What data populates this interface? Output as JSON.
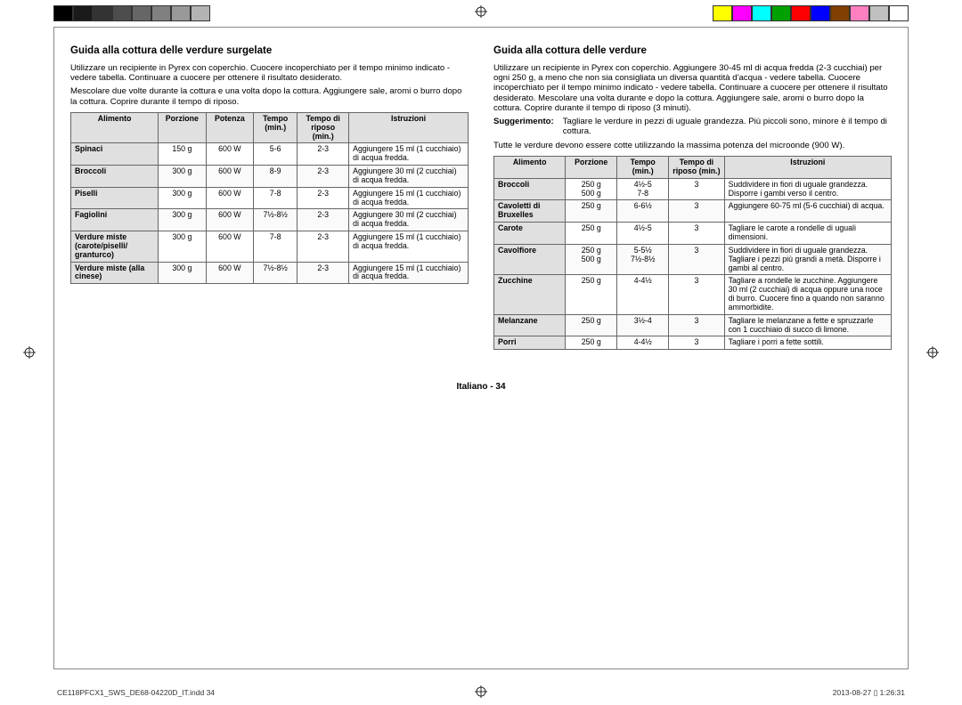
{
  "colorbar_left": [
    "#000000",
    "#1a1a1a",
    "#333333",
    "#4d4d4d",
    "#666666",
    "#808080",
    "#999999",
    "#b3b3b3"
  ],
  "colorbar_right": [
    "#ffff00",
    "#ff00ff",
    "#00ffff",
    "#00a000",
    "#ff0000",
    "#0000ff",
    "#804000",
    "#ff80c0",
    "#c0c0c0",
    "#ffffff"
  ],
  "header_bg": "#e0e0e0",
  "row_alt_bg": "#f0f0f0",
  "left": {
    "title": "Guida alla cottura delle verdure surgelate",
    "p1": "Utilizzare un recipiente in Pyrex con coperchio. Cuocere incoperchiato per il tempo minimo indicato - vedere tabella. Continuare a cuocere per ottenere il risultato desiderato.",
    "p2": "Mescolare due volte durante la cottura e una volta dopo la cottura. Aggiungere sale, aromi o burro dopo la cottura. Coprire durante il tempo di riposo.",
    "cols": [
      "Alimento",
      "Porzione",
      "Potenza",
      "Tempo (min.)",
      "Tempo di riposo (min.)",
      "Istruzioni"
    ],
    "rows": [
      [
        "Spinaci",
        "150 g",
        "600 W",
        "5-6",
        "2-3",
        "Aggiungere 15 ml (1 cucchiaio) di acqua fredda."
      ],
      [
        "Broccoli",
        "300 g",
        "600 W",
        "8-9",
        "2-3",
        "Aggiungere 30 ml (2 cucchiai) di acqua fredda."
      ],
      [
        "Piselli",
        "300 g",
        "600 W",
        "7-8",
        "2-3",
        "Aggiungere 15 ml (1 cucchiaio) di acqua fredda."
      ],
      [
        "Fagiolini",
        "300 g",
        "600 W",
        "7½-8½",
        "2-3",
        "Aggiungere 30 ml (2 cucchiai) di acqua fredda."
      ],
      [
        "Verdure miste (carote/piselli/ granturco)",
        "300 g",
        "600 W",
        "7-8",
        "2-3",
        "Aggiungere 15 ml (1 cucchiaio) di acqua fredda."
      ],
      [
        "Verdure miste (alla cinese)",
        "300 g",
        "600 W",
        "7½-8½",
        "2-3",
        "Aggiungere 15 ml (1 cucchiaio) di acqua fredda."
      ]
    ]
  },
  "right": {
    "title": "Guida alla cottura delle verdure",
    "p1": "Utilizzare un recipiente in Pyrex con coperchio. Aggiungere 30-45 ml di acqua fredda (2-3 cucchiai) per ogni 250 g, a meno che non sia consigliata un diversa quantità d'acqua - vedere tabella. Cuocere incoperchiato per il tempo minimo indicato - vedere tabella. Continuare a cuocere per ottenere il risultato desiderato. Mescolare una volta durante e dopo la cottura. Aggiungere sale, aromi o burro dopo la cottura. Coprire durante il tempo di riposo (3 minuti).",
    "sugg_label": "Suggerimento:",
    "sugg_text": "Tagliare le verdure in pezzi di uguale grandezza. Più piccoli sono, minore è il tempo di cottura.",
    "p2": "Tutte le verdure devono essere cotte utilizzando la massima potenza del microonde (900 W).",
    "cols": [
      "Alimento",
      "Porzione",
      "Tempo (min.)",
      "Tempo di riposo (min.)",
      "Istruzioni"
    ],
    "rows": [
      [
        "Broccoli",
        "250 g\n500 g",
        "4½-5\n7-8",
        "3",
        "Suddividere in fiori di uguale grandezza. Disporre i gambi verso il centro."
      ],
      [
        "Cavoletti di Bruxelles",
        "250 g",
        "6-6½",
        "3",
        "Aggiungere 60-75 ml (5-6 cucchiai) di acqua."
      ],
      [
        "Carote",
        "250 g",
        "4½-5",
        "3",
        "Tagliare le carote a rondelle di uguali dimensioni."
      ],
      [
        "Cavolfiore",
        "250 g\n500 g",
        "5-5½\n7½-8½",
        "3",
        "Suddividere in fiori di uguale grandezza. Tagliare i pezzi più grandi a metà. Disporre i gambi al centro."
      ],
      [
        "Zucchine",
        "250 g",
        "4-4½",
        "3",
        "Tagliare a rondelle le zucchine. Aggiungere 30 ml (2 cucchiai) di acqua oppure una noce di burro. Cuocere fino a quando non saranno ammorbidite."
      ],
      [
        "Melanzane",
        "250 g",
        "3½-4",
        "3",
        "Tagliare le melanzane a fette e spruzzarle con 1 cucchiaio di succo di limone."
      ],
      [
        "Porri",
        "250 g",
        "4-4½",
        "3",
        "Tagliare i porri a fette sottili."
      ]
    ]
  },
  "page_label": "Italiano - 34",
  "print_left": "CE118PFCX1_SWS_DE68-04220D_IT.indd   34",
  "print_right": "2013-08-27   ▯ 1:26:31",
  "col_widths_left": [
    "22%",
    "12%",
    "12%",
    "11%",
    "13%",
    "30%"
  ],
  "col_widths_right": [
    "18%",
    "13%",
    "13%",
    "14%",
    "42%"
  ]
}
